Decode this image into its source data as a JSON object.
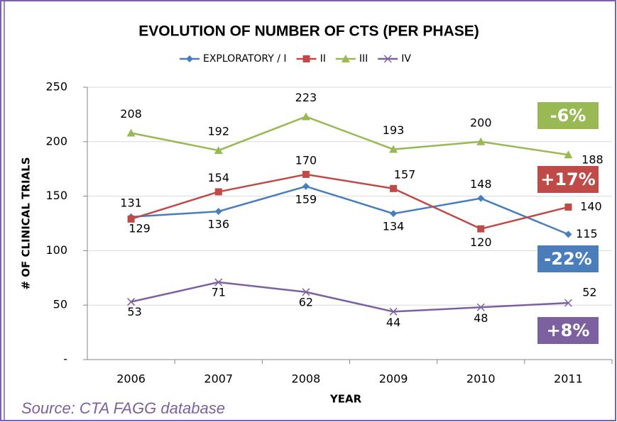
{
  "chart_data": {
    "type": "line",
    "title": "EVOLUTION OF NUMBER OF CTS (PER PHASE)",
    "x_label": "YEAR",
    "y_label": "# OF CLINICAL TRIALS",
    "categories": [
      "2006",
      "2007",
      "2008",
      "2009",
      "2010",
      "2011"
    ],
    "series": [
      {
        "name": "EXPLORATORY / I",
        "color": "#4a7ebb",
        "marker": "diamond",
        "values": [
          131,
          136,
          159,
          134,
          148,
          115
        ]
      },
      {
        "name": "II",
        "color": "#be4b48",
        "marker": "square",
        "values": [
          129,
          154,
          170,
          157,
          120,
          140
        ]
      },
      {
        "name": "III",
        "color": "#98b954",
        "marker": "triangle",
        "values": [
          208,
          192,
          223,
          193,
          200,
          188
        ]
      },
      {
        "name": "IV",
        "color": "#7d60a0",
        "marker": "x",
        "values": [
          53,
          71,
          62,
          44,
          48,
          52
        ]
      }
    ],
    "ylim": [
      0,
      250
    ],
    "yticks": [
      {
        "value": 0,
        "label": "-"
      },
      50,
      100,
      150,
      200,
      250
    ],
    "grid": true,
    "legend": "top",
    "annotations": [
      {
        "text": "-6%",
        "color": "#98b954"
      },
      {
        "text": "+17%",
        "color": "#be4b48"
      },
      {
        "text": "-22%",
        "color": "#4a7ebb"
      },
      {
        "text": "+8%",
        "color": "#7d60a0"
      }
    ],
    "source": "Source:   CTA FAGG database"
  }
}
